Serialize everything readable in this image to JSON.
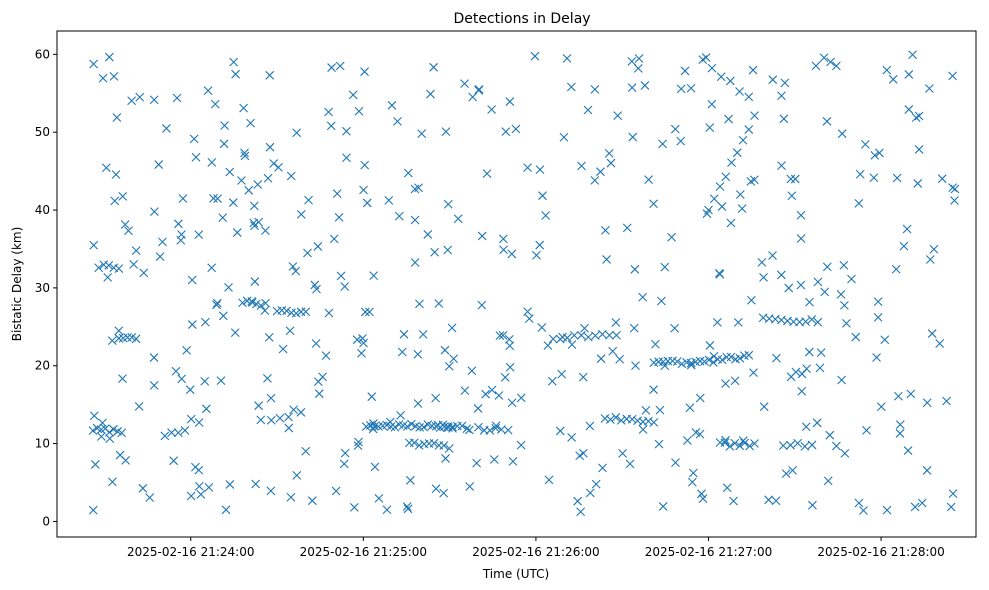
{
  "chart_data": {
    "type": "scatter",
    "title": "Detections in Delay",
    "xlabel": "Time (UTC)",
    "ylabel": "Bistatic Delay (km)",
    "x_ticks": [
      {
        "t": 34,
        "label": "2025-02-16 21:24:00"
      },
      {
        "t": 94,
        "label": "2025-02-16 21:25:00"
      },
      {
        "t": 154,
        "label": "2025-02-16 21:26:00"
      },
      {
        "t": 214,
        "label": "2025-02-16 21:27:00"
      },
      {
        "t": 274,
        "label": "2025-02-16 21:28:00"
      }
    ],
    "x_unit": "seconds after 2025-02-16 21:23:26",
    "xlim": [
      -12.5,
      307
    ],
    "y_ticks": [
      0,
      10,
      20,
      30,
      40,
      50,
      60
    ],
    "ylim": [
      -2,
      63
    ],
    "marker": "x",
    "color": "#1f77b4",
    "clusters": [
      {
        "t0": 0,
        "t1": 10,
        "y0": 11.8,
        "y1": 11.6,
        "n": 8
      },
      {
        "t0": 2,
        "t1": 9,
        "y0": 32.8,
        "y1": 32.5,
        "n": 5
      },
      {
        "t0": 9,
        "t1": 15,
        "y0": 23.5,
        "y1": 23.5,
        "n": 5
      },
      {
        "t0": 25,
        "t1": 32,
        "y0": 11.0,
        "y1": 11.7,
        "n": 4
      },
      {
        "t0": 52,
        "t1": 60,
        "y0": 28.3,
        "y1": 27.8,
        "n": 6
      },
      {
        "t0": 64,
        "t1": 74,
        "y0": 27.2,
        "y1": 26.8,
        "n": 7
      },
      {
        "t0": 62,
        "t1": 68,
        "y0": 13.2,
        "y1": 13.2,
        "n": 3
      },
      {
        "t0": 95,
        "t1": 125,
        "y0": 12.3,
        "y1": 12.2,
        "n": 22
      },
      {
        "t0": 110,
        "t1": 122,
        "y0": 10.0,
        "y1": 9.8,
        "n": 8
      },
      {
        "t0": 120,
        "t1": 130,
        "y0": 12.3,
        "y1": 12.0,
        "n": 7
      },
      {
        "t0": 134,
        "t1": 142,
        "y0": 11.9,
        "y1": 11.7,
        "n": 5
      },
      {
        "t0": 160,
        "t1": 182,
        "y0": 23.6,
        "y1": 24.0,
        "n": 10
      },
      {
        "t0": 178,
        "t1": 195,
        "y0": 13.3,
        "y1": 12.8,
        "n": 10
      },
      {
        "t0": 195,
        "t1": 208,
        "y0": 20.6,
        "y1": 20.3,
        "n": 9
      },
      {
        "t0": 208,
        "t1": 228,
        "y0": 20.3,
        "y1": 21.2,
        "n": 14
      },
      {
        "t0": 218,
        "t1": 230,
        "y0": 9.9,
        "y1": 9.8,
        "n": 8
      },
      {
        "t0": 233,
        "t1": 252,
        "y0": 26.0,
        "y1": 25.8,
        "n": 10
      },
      {
        "t0": 240,
        "t1": 250,
        "y0": 9.8,
        "y1": 9.8,
        "n": 5
      },
      {
        "t0": 214,
        "t1": 230,
        "y0": 40.0,
        "y1": 52.0,
        "n": 9
      },
      {
        "t0": 212,
        "t1": 228,
        "y0": 59.2,
        "y1": 54.5,
        "n": 6
      }
    ],
    "scatter_points": 470,
    "scatter_seed": 7
  }
}
